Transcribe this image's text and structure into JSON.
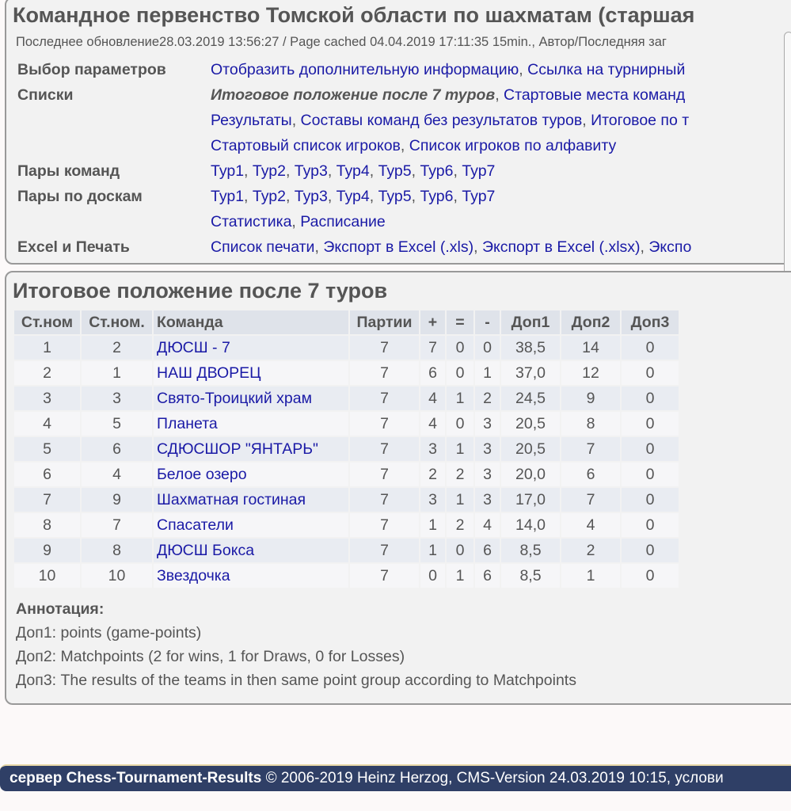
{
  "header": {
    "title": "Командное первенство Томской области по шахматам (старшая",
    "meta": "Последнее обновление28.03.2019 13:56:27 / Page cached 04.04.2019 17:11:35 15min., Автор/Последняя заг"
  },
  "nav": [
    {
      "label": "Выбор параметров",
      "links": [
        "Отобразить дополнительную информацию",
        "Ссылка на турнирный"
      ]
    },
    {
      "label": "Списки",
      "current": "Итоговое положение после 7 туров",
      "links": [
        "Стартовые места команд"
      ]
    },
    {
      "label": "",
      "links": [
        "Результаты",
        "Составы команд без результатов туров",
        "Итоговое по т"
      ]
    },
    {
      "label": "",
      "links": [
        "Стартовый список игроков",
        "Список игроков по алфавиту"
      ]
    },
    {
      "label": "Пары команд",
      "links": [
        "Тур1",
        "Тур2",
        "Тур3",
        "Тур4",
        "Тур5",
        "Тур6",
        "Тур7"
      ]
    },
    {
      "label": "Пары по доскам",
      "links": [
        "Тур1",
        "Тур2",
        "Тур3",
        "Тур4",
        "Тур5",
        "Тур6",
        "Тур7"
      ]
    },
    {
      "label": "",
      "links": [
        "Статистика",
        "Расписание"
      ]
    },
    {
      "label": "Excel и Печать",
      "links": [
        "Список печати",
        "Экспорт в Excel (.xls)",
        "Экспорт в Excel (.xlsx)",
        "Экспо"
      ]
    }
  ],
  "standings": {
    "title": "Итоговое положение после 7 туров",
    "columns": [
      "Ст.ном",
      "Ст.ном.",
      "Команда",
      "Партии",
      "+",
      "=",
      "-",
      "Доп1",
      "Доп2",
      "Доп3"
    ],
    "rows": [
      [
        "1",
        "2",
        "ДЮСШ - 7",
        "7",
        "7",
        "0",
        "0",
        "38,5",
        "14",
        "0"
      ],
      [
        "2",
        "1",
        "НАШ ДВОРЕЦ",
        "7",
        "6",
        "0",
        "1",
        "37,0",
        "12",
        "0"
      ],
      [
        "3",
        "3",
        "Свято-Троицкий храм",
        "7",
        "4",
        "1",
        "2",
        "24,5",
        "9",
        "0"
      ],
      [
        "4",
        "5",
        "Планета",
        "7",
        "4",
        "0",
        "3",
        "20,5",
        "8",
        "0"
      ],
      [
        "5",
        "6",
        "СДЮСШОР \"ЯНТАРЬ\"",
        "7",
        "3",
        "1",
        "3",
        "20,5",
        "7",
        "0"
      ],
      [
        "6",
        "4",
        "Белое озеро",
        "7",
        "2",
        "2",
        "3",
        "20,0",
        "6",
        "0"
      ],
      [
        "7",
        "9",
        "Шахматная гостиная",
        "7",
        "3",
        "1",
        "3",
        "17,0",
        "7",
        "0"
      ],
      [
        "8",
        "7",
        "Спасатели",
        "7",
        "1",
        "2",
        "4",
        "14,0",
        "4",
        "0"
      ],
      [
        "9",
        "8",
        "ДЮСШ Бокса",
        "7",
        "1",
        "0",
        "6",
        "8,5",
        "2",
        "0"
      ],
      [
        "10",
        "10",
        "Звездочка",
        "7",
        "0",
        "1",
        "6",
        "8,5",
        "1",
        "0"
      ]
    ]
  },
  "annotation": {
    "title": "Аннотация:",
    "lines": [
      "Доп1: points (game-points)",
      "Доп2: Matchpoints (2 for wins, 1 for Draws, 0 for Losses)",
      "Доп3: The results of the teams in then same point group according to Matchpoints"
    ]
  },
  "footer": {
    "server": "сервер Chess-Tournament-Results",
    "text": " © 2006-2019 Heinz Herzog, CMS-Version 24.03.2019 10:15, услови"
  },
  "colors": {
    "link": "#1a1aa6",
    "footer_bg": "#2f3f66",
    "header_bg": "#dfe3ea"
  }
}
